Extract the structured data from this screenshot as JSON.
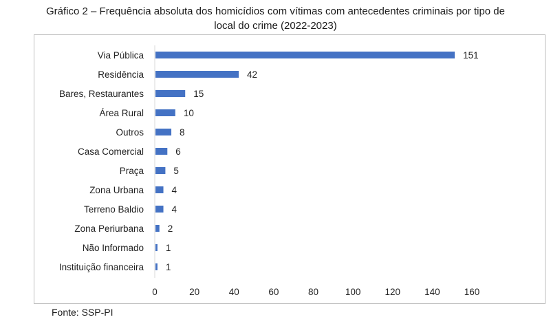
{
  "title_line1": "Gráfico 2 – Frequência absoluta dos homicídios com vítimas com antecedentes criminais por tipo de",
  "title_line2": "local do crime (2022-2023)",
  "source": "Fonte: SSP-PI",
  "colors": {
    "bar": "#4472c4",
    "frame": "#bdbdbd",
    "text": "#222222",
    "axis": "#d9d9d9"
  },
  "chart_data": {
    "type": "bar",
    "orientation": "horizontal",
    "title": "Gráfico 2 – Frequência absoluta dos homicídios com vítimas com antecedentes criminais por tipo de local do crime (2022-2023)",
    "categories": [
      "Via Pública",
      "Residência",
      "Bares, Restaurantes",
      "Área Rural",
      "Outros",
      "Casa Comercial",
      "Praça",
      "Zona Urbana",
      "Terreno Baldio",
      "Zona Periurbana",
      "Não Informado",
      "Instituição financeira"
    ],
    "values": [
      151,
      42,
      15,
      10,
      8,
      6,
      5,
      4,
      4,
      2,
      1,
      1
    ],
    "xlim": [
      0,
      160
    ],
    "xticks": [
      0,
      20,
      40,
      60,
      80,
      100,
      120,
      140,
      160
    ],
    "grid": false,
    "data_labels": true
  }
}
